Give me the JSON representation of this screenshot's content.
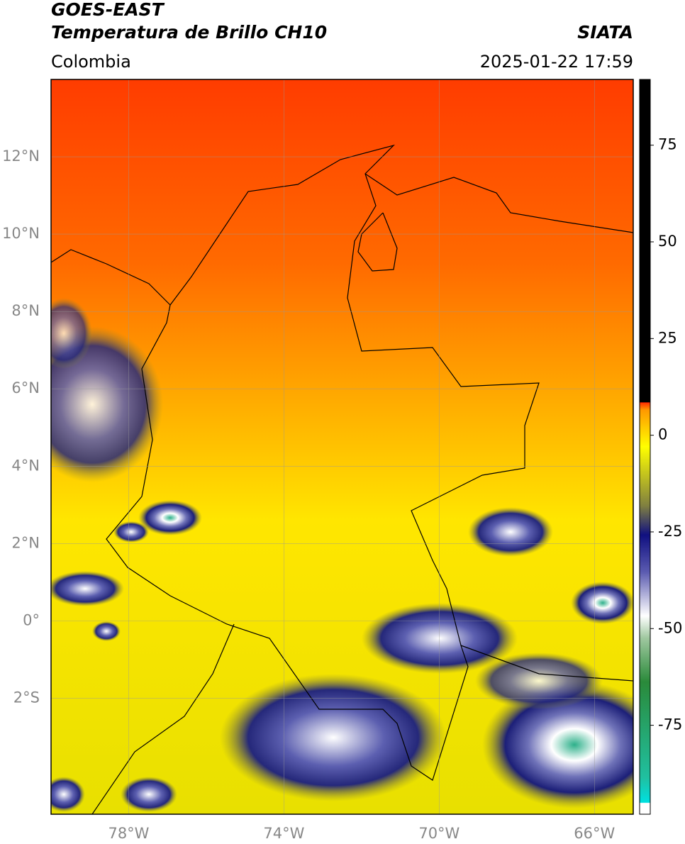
{
  "header": {
    "title": "GOES-EAST",
    "subtitle": "Temperatura de Brillo CH10",
    "source": "SIATA",
    "region": "Colombia",
    "datetime": "2025-01-22 17:59"
  },
  "map": {
    "xlim": [
      -80,
      -65
    ],
    "ylim": [
      -5,
      14
    ],
    "xticks": [
      {
        "value": -78,
        "label": "78°W"
      },
      {
        "value": -74,
        "label": "74°W"
      },
      {
        "value": -70,
        "label": "70°W"
      },
      {
        "value": -66,
        "label": "66°W"
      }
    ],
    "yticks": [
      {
        "value": 12,
        "label": "12°N"
      },
      {
        "value": 10,
        "label": "10°N"
      },
      {
        "value": 8,
        "label": "8°N"
      },
      {
        "value": 6,
        "label": "6°N"
      },
      {
        "value": 4,
        "label": "4°N"
      },
      {
        "value": 2,
        "label": "2°N"
      },
      {
        "value": 0,
        "label": "0°"
      },
      {
        "value": -2,
        "label": "2°S"
      }
    ],
    "grid": true
  },
  "colorbar": {
    "lim": [
      -98,
      92
    ],
    "ticks": [
      75,
      50,
      25,
      0,
      -25,
      -50,
      -75
    ]
  }
}
